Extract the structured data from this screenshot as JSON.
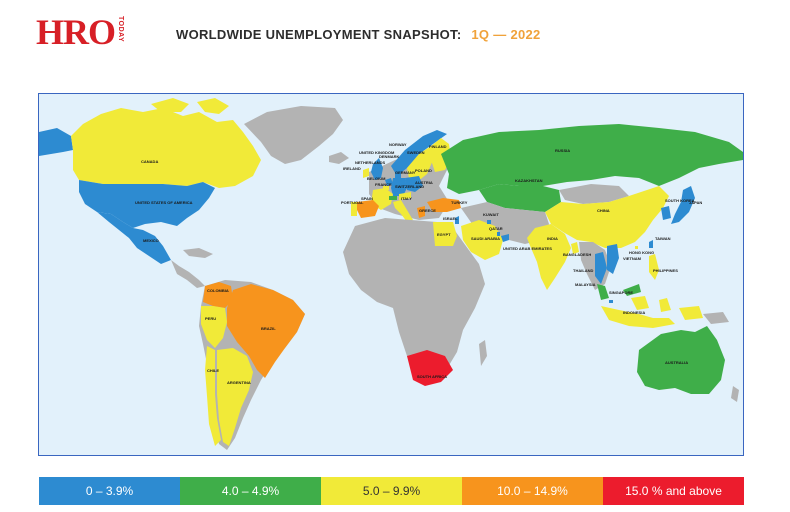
{
  "header": {
    "logo_text": "HRO",
    "logo_subtext": "TODAY",
    "title": "WORLDWIDE UNEMPLOYMENT SNAPSHOT:",
    "period": "1Q — 2022"
  },
  "colors": {
    "ocean": "#e2f1fb",
    "no_data": "#b3b3b3",
    "band_0": "#2d8bd1",
    "band_1": "#3fae49",
    "band_2": "#f1ea38",
    "band_3": "#f7941d",
    "band_4": "#ec1c2d"
  },
  "legend": [
    {
      "label": "0 – 3.9%",
      "color": "#2d8bd1"
    },
    {
      "label": "4.0 – 4.9%",
      "color": "#3fae49"
    },
    {
      "label": "5.0 – 9.9%",
      "color": "#f1ea38"
    },
    {
      "label": "10.0 – 14.9%",
      "color": "#f7941d"
    },
    {
      "label": "15.0 % and above",
      "color": "#ec1c2d"
    }
  ],
  "countries": [
    {
      "name": "CANADA",
      "band": "5.0 – 9.9%"
    },
    {
      "name": "UNITED STATES OF AMERICA",
      "band": "0 – 3.9%"
    },
    {
      "name": "MEXICO",
      "band": "0 – 3.9%"
    },
    {
      "name": "COLOMBIA",
      "band": "10.0 – 14.9%"
    },
    {
      "name": "PERU",
      "band": "5.0 – 9.9%"
    },
    {
      "name": "BRAZIL",
      "band": "10.0 – 14.9%"
    },
    {
      "name": "CHILE",
      "band": "5.0 – 9.9%"
    },
    {
      "name": "ARGENTINA",
      "band": "5.0 – 9.9%"
    },
    {
      "name": "IRELAND",
      "band": "5.0 – 9.9%"
    },
    {
      "name": "UNITED KINGDOM",
      "band": "0 – 3.9%"
    },
    {
      "name": "NORWAY",
      "band": "0 – 3.9%"
    },
    {
      "name": "SWEDEN",
      "band": "5.0 – 9.9%"
    },
    {
      "name": "FINLAND",
      "band": "5.0 – 9.9%"
    },
    {
      "name": "DENMARK",
      "band": "0 – 3.9%"
    },
    {
      "name": "NETHERLANDS",
      "band": "0 – 3.9%"
    },
    {
      "name": "BELGIUM",
      "band": "5.0 – 9.9%"
    },
    {
      "name": "GERMANY",
      "band": "0 – 3.9%"
    },
    {
      "name": "POLAND",
      "band": "0 – 3.9%"
    },
    {
      "name": "FRANCE",
      "band": "5.0 – 9.9%"
    },
    {
      "name": "AUSTRIA",
      "band": "5.0 – 9.9%"
    },
    {
      "name": "SWITZERLAND",
      "band": "4.0 – 4.9%"
    },
    {
      "name": "PORTUGAL",
      "band": "5.0 – 9.9%"
    },
    {
      "name": "SPAIN",
      "band": "10.0 – 14.9%"
    },
    {
      "name": "ITALY",
      "band": "5.0 – 9.9%"
    },
    {
      "name": "GREECE",
      "band": "10.0 – 14.9%"
    },
    {
      "name": "TURKEY",
      "band": "10.0 – 14.9%"
    },
    {
      "name": "RUSSIA",
      "band": "4.0 – 4.9%"
    },
    {
      "name": "KAZAKHSTAN",
      "band": "4.0 – 4.9%"
    },
    {
      "name": "ISRAEL",
      "band": "0 – 3.9%"
    },
    {
      "name": "EGYPT",
      "band": "5.0 – 9.9%"
    },
    {
      "name": "SAUDI ARABIA",
      "band": "5.0 – 9.9%"
    },
    {
      "name": "KUWAIT",
      "band": "0 – 3.9%"
    },
    {
      "name": "QATAR",
      "band": "0 – 3.9%"
    },
    {
      "name": "UNITED ARAB EMIRATES",
      "band": "0 – 3.9%"
    },
    {
      "name": "INDIA",
      "band": "5.0 – 9.9%"
    },
    {
      "name": "CHINA",
      "band": "5.0 – 9.9%"
    },
    {
      "name": "BANGLADESH",
      "band": "5.0 – 9.9%"
    },
    {
      "name": "THAILAND",
      "band": "0 – 3.9%"
    },
    {
      "name": "MALAYSIA",
      "band": "4.0 – 4.9%"
    },
    {
      "name": "SINGAPORE",
      "band": "0 – 3.9%"
    },
    {
      "name": "VIETNAM",
      "band": "0 – 3.9%"
    },
    {
      "name": "HONG KONG",
      "band": "5.0 – 9.9%"
    },
    {
      "name": "TAIWAN",
      "band": "0 – 3.9%"
    },
    {
      "name": "SOUTH KOREA",
      "band": "0 – 3.9%"
    },
    {
      "name": "JAPAN",
      "band": "0 – 3.9%"
    },
    {
      "name": "PHILIPPINES",
      "band": "5.0 – 9.9%"
    },
    {
      "name": "INDONESIA",
      "band": "5.0 – 9.9%"
    },
    {
      "name": "AUSTRALIA",
      "band": "4.0 – 4.9%"
    },
    {
      "name": "SOUTH AFRICA",
      "band": "15.0 % and above"
    }
  ]
}
